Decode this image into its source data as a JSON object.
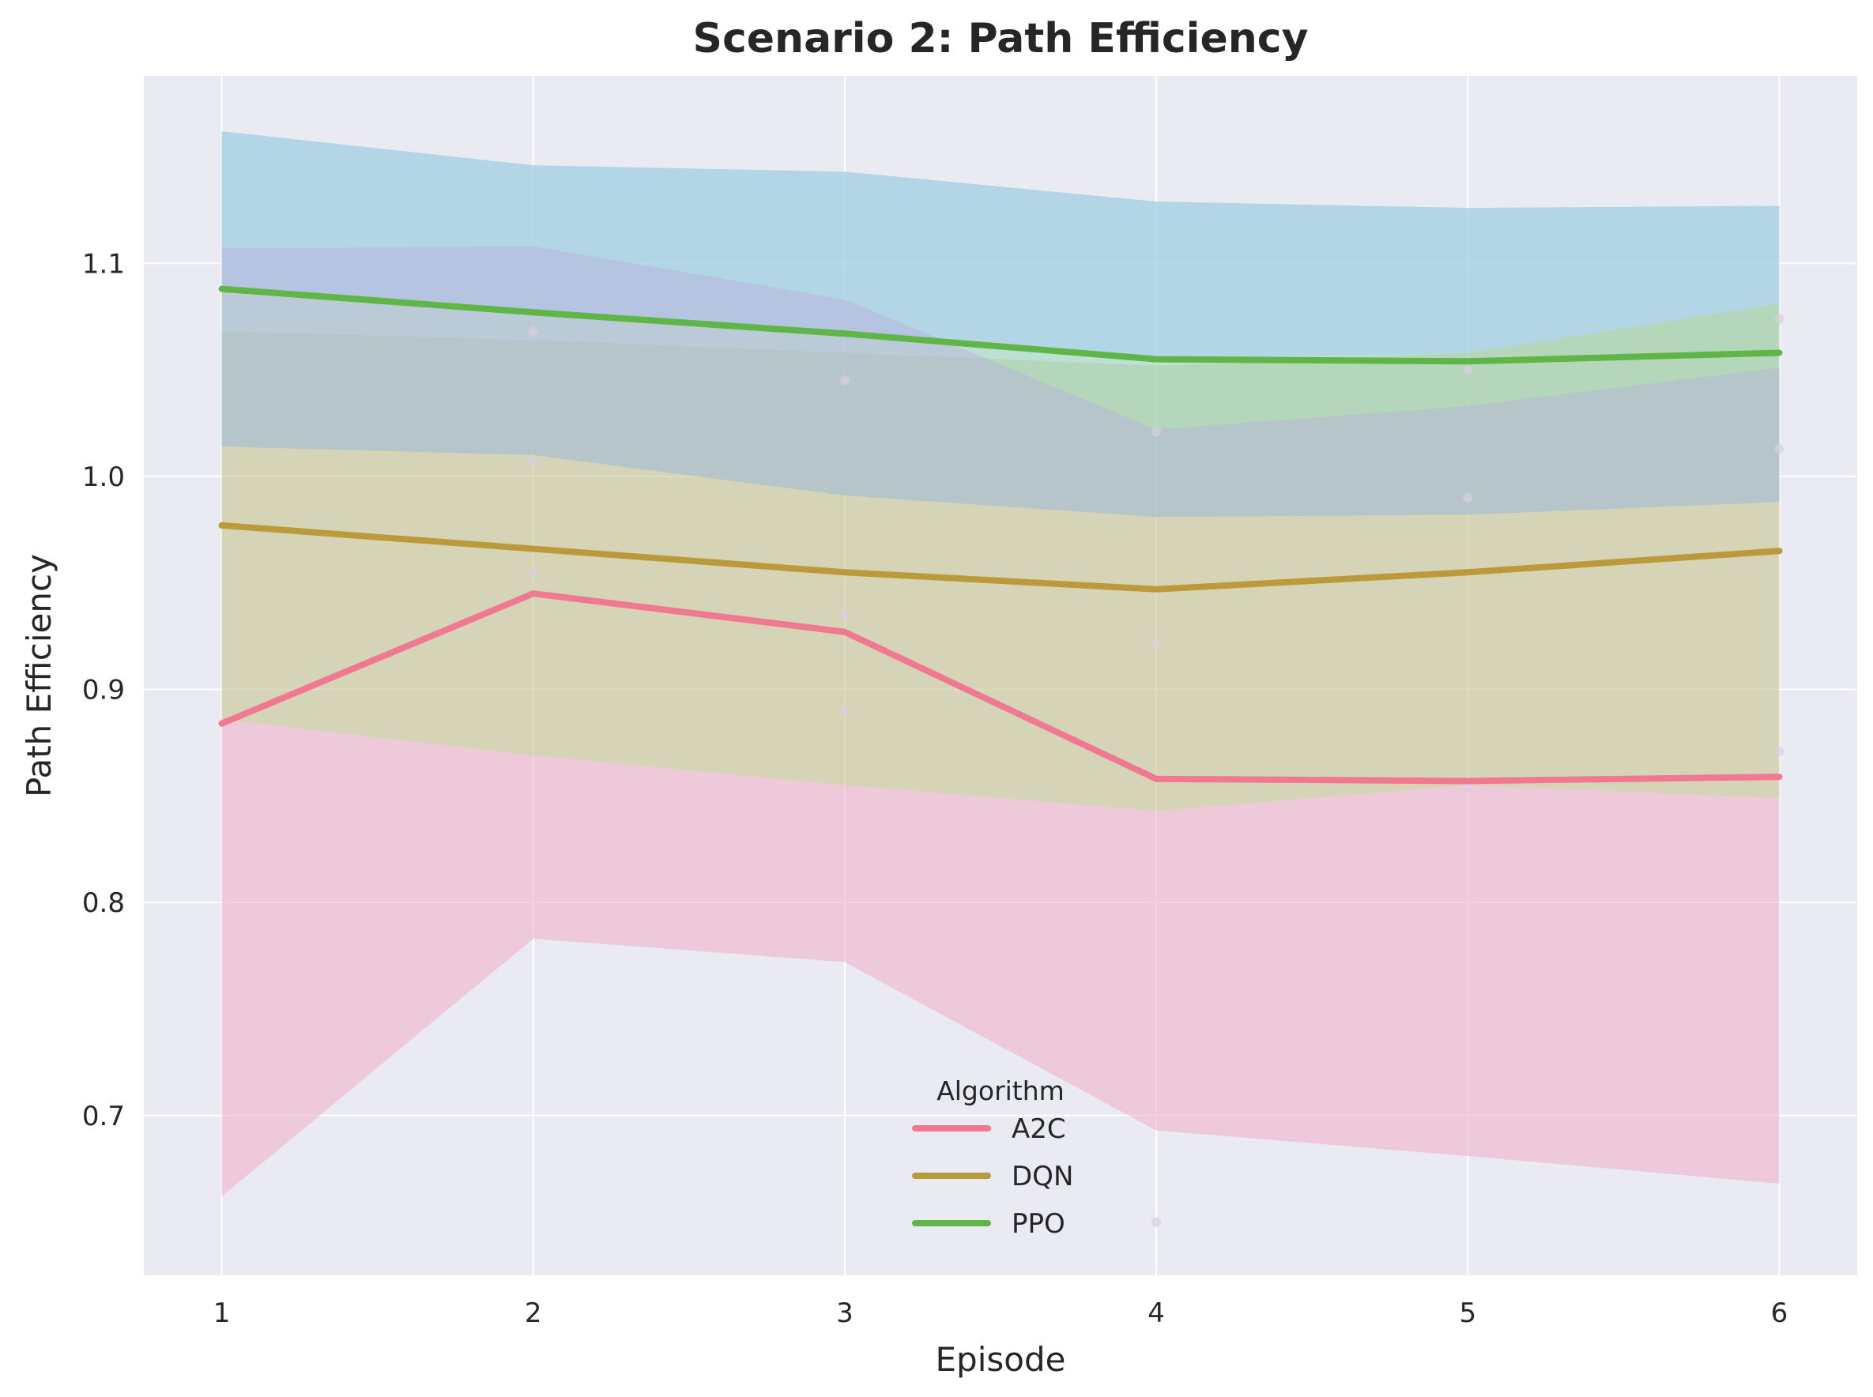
{
  "chart_data": {
    "type": "line",
    "title": "Scenario 2: Path Efficiency",
    "xlabel": "Episode",
    "ylabel": "Path Efficiency",
    "x": [
      1,
      2,
      3,
      4,
      5,
      6
    ],
    "xlim": [
      0.75,
      6.25
    ],
    "ylim": [
      0.625,
      1.188
    ],
    "yticks": [
      0.7,
      0.8,
      0.9,
      1.0,
      1.1
    ],
    "ytick_labels": [
      "0.7",
      "0.8",
      "0.9",
      "1.0",
      "1.1"
    ],
    "xtick_labels": [
      "1",
      "2",
      "3",
      "4",
      "5",
      "6"
    ],
    "grid": true,
    "legend": {
      "title": "Algorithm",
      "placement": "lower-center"
    },
    "series": [
      {
        "name": "A2C",
        "color": "#f07891",
        "band_color": "#f0b2c8",
        "values": [
          0.884,
          0.945,
          0.927,
          0.858,
          0.857,
          0.859
        ],
        "lower": [
          0.662,
          0.783,
          0.772,
          0.693,
          0.681,
          0.668
        ],
        "upper": [
          0.886,
          0.869,
          0.855,
          0.843,
          0.855,
          0.849
        ]
      },
      {
        "name": "DQN",
        "color": "#bb9a3c",
        "band_color": "#c6c48f",
        "values": [
          0.977,
          0.966,
          0.955,
          0.947,
          0.955,
          0.965
        ],
        "lower": [
          0.886,
          0.869,
          0.855,
          0.843,
          0.855,
          0.849
        ],
        "upper": [
          1.068,
          1.064,
          1.058,
          1.052,
          1.058,
          1.081
        ]
      },
      {
        "name": "PPO",
        "color": "#5fb646",
        "band_color": "#9fd8c0",
        "values": [
          1.088,
          1.077,
          1.067,
          1.055,
          1.054,
          1.058
        ],
        "lower": [
          1.014,
          1.01,
          0.991,
          0.981,
          0.982,
          0.988
        ],
        "upper": [
          1.162,
          1.146,
          1.143,
          1.129,
          1.126,
          1.127
        ]
      }
    ],
    "extra_bands": [
      {
        "color": "#b8b0dc",
        "lower": [
          1.014,
          1.01,
          0.991,
          0.981,
          0.982,
          0.988
        ],
        "upper": [
          1.107,
          1.108,
          1.083,
          1.022,
          1.033,
          1.051
        ]
      }
    ],
    "points": [
      {
        "x": 2,
        "y": 1.068
      },
      {
        "x": 3,
        "y": 1.045
      },
      {
        "x": 4,
        "y": 1.021
      },
      {
        "x": 5,
        "y": 1.05
      },
      {
        "x": 6,
        "y": 1.074
      },
      {
        "x": 5,
        "y": 0.99
      },
      {
        "x": 6,
        "y": 1.013
      },
      {
        "x": 2,
        "y": 1.007
      },
      {
        "x": 2,
        "y": 0.955
      },
      {
        "x": 3,
        "y": 0.935
      },
      {
        "x": 4,
        "y": 0.921
      },
      {
        "x": 3,
        "y": 0.89
      },
      {
        "x": 6,
        "y": 0.871
      },
      {
        "x": 5,
        "y": 0.854
      },
      {
        "x": 4,
        "y": 0.65
      }
    ]
  }
}
